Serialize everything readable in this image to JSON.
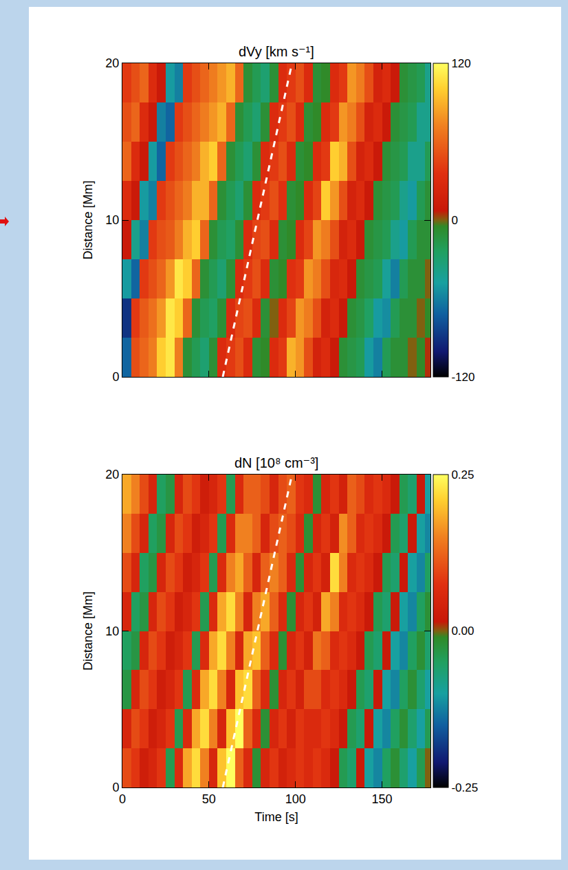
{
  "chart_data": [
    {
      "type": "heatmap",
      "title": "dVy [km s⁻¹]",
      "y_label": "Distance [Mm]",
      "tick_labels": "y",
      "xlim": [
        0,
        178
      ],
      "xticks": [
        0,
        50,
        100,
        150
      ],
      "ylim": [
        0,
        20
      ],
      "yticks": [
        0,
        10,
        20
      ],
      "zlim": [
        -120,
        120
      ],
      "zticks": [
        -120,
        0,
        120
      ],
      "x": [
        2.5,
        7.5,
        12.5,
        17.5,
        22.5,
        27.5,
        32.5,
        37.5,
        42.5,
        47.5,
        52.5,
        57.5,
        62.5,
        67.5,
        72.5,
        77.5,
        82.5,
        87.5,
        92.5,
        97.5,
        102.5,
        107.5,
        112.5,
        117.5,
        122.5,
        127.5,
        132.5,
        137.5,
        142.5,
        147.5,
        152.5,
        157.5,
        162.5,
        167.5,
        172.5,
        177.5
      ],
      "y": [
        1.25,
        3.75,
        6.25,
        8.75,
        11.25,
        13.75,
        16.25,
        18.75
      ],
      "z": [
        [
          -70,
          50,
          60,
          70,
          100,
          110,
          70,
          -10,
          -20,
          -30,
          -10,
          30,
          40,
          50,
          30,
          -10,
          -5,
          30,
          40,
          90,
          80,
          50,
          20,
          30,
          10,
          -10,
          -15,
          -20,
          -50,
          -60,
          -20,
          -10,
          -10,
          0,
          -5,
          5
        ],
        [
          -90,
          40,
          55,
          65,
          80,
          110,
          100,
          60,
          -10,
          -20,
          -25,
          -10,
          30,
          45,
          50,
          30,
          -10,
          0,
          30,
          45,
          80,
          70,
          50,
          20,
          30,
          10,
          -10,
          -15,
          -25,
          -50,
          -55,
          -20,
          -10,
          -10,
          0,
          -5
        ],
        [
          -50,
          -70,
          40,
          50,
          60,
          80,
          110,
          100,
          60,
          -10,
          -20,
          -30,
          -10,
          30,
          40,
          50,
          30,
          -10,
          -5,
          35,
          40,
          80,
          70,
          50,
          25,
          30,
          10,
          -10,
          -15,
          -20,
          -45,
          -60,
          -20,
          -10,
          -10,
          0
        ],
        [
          10,
          -40,
          -60,
          40,
          50,
          55,
          70,
          90,
          100,
          60,
          -10,
          -20,
          -25,
          -10,
          30,
          45,
          50,
          30,
          -10,
          -5,
          30,
          45,
          80,
          70,
          50,
          20,
          30,
          10,
          -10,
          -15,
          -20,
          -40,
          -50,
          -20,
          -10,
          -10
        ],
        [
          30,
          10,
          -50,
          -60,
          40,
          50,
          60,
          70,
          90,
          90,
          60,
          -10,
          -20,
          -30,
          -10,
          30,
          40,
          50,
          35,
          -10,
          -5,
          30,
          45,
          100,
          80,
          50,
          20,
          30,
          10,
          -10,
          -15,
          -20,
          -40,
          -50,
          -20,
          -10
        ],
        [
          60,
          30,
          10,
          -50,
          -70,
          40,
          50,
          60,
          70,
          90,
          100,
          60,
          -10,
          -20,
          -30,
          -10,
          30,
          40,
          50,
          30,
          -10,
          -5,
          30,
          40,
          100,
          90,
          50,
          20,
          30,
          10,
          -10,
          -15,
          -20,
          -40,
          -40,
          -20
        ],
        [
          50,
          60,
          30,
          10,
          -60,
          -70,
          40,
          50,
          60,
          70,
          80,
          90,
          60,
          -10,
          -20,
          -30,
          -10,
          30,
          40,
          50,
          30,
          -10,
          -5,
          30,
          40,
          80,
          70,
          50,
          20,
          30,
          10,
          -10,
          -15,
          -20,
          -40,
          -40
        ],
        [
          40,
          50,
          60,
          30,
          10,
          -50,
          -60,
          40,
          50,
          60,
          70,
          80,
          90,
          60,
          -10,
          -20,
          -30,
          -10,
          30,
          40,
          50,
          30,
          -10,
          -5,
          30,
          40,
          80,
          70,
          50,
          20,
          30,
          10,
          -10,
          -15,
          -20,
          -40
        ]
      ],
      "dashed_line": {
        "x": [
          58,
          98
        ],
        "y": [
          0,
          20
        ],
        "color": "#ffffff",
        "line_style": "dash"
      }
    },
    {
      "type": "heatmap",
      "title": "dN [10⁸ cm⁻³]",
      "x_label": "Time [s]",
      "y_label": "Distance [Mm]",
      "xlim": [
        0,
        178
      ],
      "xticks": [
        0,
        50,
        100,
        150
      ],
      "ylim": [
        0,
        20
      ],
      "yticks": [
        0,
        10,
        20
      ],
      "zlim": [
        -0.25,
        0.25
      ],
      "zticks": [
        -0.25,
        {
          "value": 0,
          "label": "0.00"
        },
        0.25
      ],
      "x": [
        2.5,
        7.5,
        12.5,
        17.5,
        22.5,
        27.5,
        32.5,
        37.5,
        42.5,
        47.5,
        52.5,
        57.5,
        62.5,
        67.5,
        72.5,
        77.5,
        82.5,
        87.5,
        92.5,
        97.5,
        102.5,
        107.5,
        112.5,
        117.5,
        122.5,
        127.5,
        132.5,
        137.5,
        142.5,
        147.5,
        152.5,
        157.5,
        162.5,
        167.5,
        172.5,
        177.5
      ],
      "y": [
        1.25,
        3.75,
        6.25,
        8.75,
        11.25,
        13.75,
        16.25,
        18.75
      ],
      "z": [
        [
          0.1,
          0.08,
          0.03,
          0.05,
          0.08,
          -0.04,
          0.06,
          0.18,
          0.22,
          0.15,
          0.05,
          0.2,
          0.25,
          0.12,
          0.06,
          -0.02,
          0.05,
          0.08,
          0.04,
          0.06,
          0.08,
          0.06,
          0.08,
          0.06,
          0.02,
          -0.04,
          -0.06,
          0.02,
          -0.1,
          -0.12,
          -0.05,
          -0.02,
          -0.06,
          -0.1,
          -0.04,
          0.0
        ],
        [
          0.05,
          0.1,
          0.08,
          0.03,
          0.05,
          0.08,
          -0.04,
          0.06,
          0.18,
          0.22,
          0.15,
          0.05,
          0.2,
          0.25,
          0.12,
          0.06,
          -0.02,
          0.05,
          0.08,
          0.04,
          0.08,
          0.06,
          0.06,
          0.08,
          0.06,
          0.02,
          -0.04,
          -0.06,
          0.02,
          -0.1,
          -0.12,
          -0.05,
          -0.02,
          -0.06,
          -0.1,
          -0.04
        ],
        [
          -0.03,
          0.05,
          0.1,
          0.08,
          0.03,
          0.05,
          0.08,
          -0.04,
          0.06,
          0.18,
          0.22,
          0.15,
          0.05,
          0.2,
          0.22,
          0.12,
          0.06,
          -0.02,
          0.05,
          0.08,
          0.04,
          0.1,
          0.1,
          0.06,
          0.08,
          0.06,
          0.02,
          -0.04,
          -0.06,
          0.02,
          -0.1,
          -0.12,
          -0.05,
          -0.02,
          -0.06,
          -0.1
        ],
        [
          -0.05,
          -0.03,
          0.05,
          0.1,
          0.08,
          0.03,
          0.05,
          0.08,
          -0.04,
          0.06,
          0.18,
          0.22,
          0.15,
          0.05,
          0.18,
          0.2,
          0.12,
          0.06,
          -0.02,
          0.05,
          0.08,
          0.04,
          0.14,
          0.12,
          0.06,
          0.08,
          0.06,
          0.02,
          -0.04,
          -0.06,
          0.02,
          -0.1,
          -0.12,
          -0.05,
          -0.02,
          -0.06
        ],
        [
          0.05,
          -0.05,
          -0.03,
          0.05,
          0.1,
          0.08,
          0.03,
          0.05,
          0.08,
          -0.04,
          0.06,
          0.18,
          0.22,
          0.15,
          0.05,
          0.15,
          0.18,
          0.12,
          0.06,
          -0.02,
          0.05,
          0.08,
          0.04,
          0.18,
          0.15,
          0.06,
          0.08,
          0.06,
          0.02,
          -0.04,
          -0.06,
          0.02,
          -0.1,
          -0.12,
          -0.05,
          -0.02
        ],
        [
          0.1,
          0.05,
          -0.05,
          -0.03,
          0.05,
          0.1,
          0.08,
          0.03,
          0.05,
          0.08,
          -0.04,
          0.06,
          0.15,
          0.18,
          0.12,
          0.05,
          0.12,
          0.15,
          0.12,
          0.06,
          -0.02,
          0.05,
          0.08,
          0.04,
          0.22,
          0.15,
          0.06,
          0.08,
          0.06,
          0.02,
          -0.04,
          -0.06,
          0.02,
          -0.1,
          -0.12,
          -0.05
        ],
        [
          0.15,
          0.1,
          0.05,
          -0.05,
          -0.03,
          0.05,
          0.1,
          0.08,
          0.03,
          0.05,
          0.08,
          -0.04,
          0.06,
          0.15,
          0.15,
          0.12,
          0.05,
          0.1,
          0.12,
          0.1,
          0.06,
          -0.02,
          0.05,
          0.08,
          0.04,
          0.16,
          0.12,
          0.06,
          0.08,
          0.06,
          0.02,
          -0.04,
          -0.06,
          0.02,
          -0.1,
          -0.12
        ],
        [
          0.18,
          0.15,
          0.1,
          0.05,
          -0.05,
          -0.03,
          0.05,
          0.1,
          0.08,
          0.03,
          0.05,
          0.08,
          -0.04,
          0.06,
          0.12,
          0.12,
          0.1,
          0.05,
          0.1,
          0.12,
          0.08,
          0.06,
          -0.02,
          0.05,
          0.08,
          0.04,
          0.12,
          0.1,
          0.06,
          0.08,
          0.06,
          0.02,
          -0.04,
          -0.06,
          0.02,
          -0.1
        ]
      ],
      "dashed_line": {
        "x": [
          58,
          98
        ],
        "y": [
          0,
          20
        ],
        "color": "#ffffff",
        "line_style": "dash"
      }
    }
  ]
}
